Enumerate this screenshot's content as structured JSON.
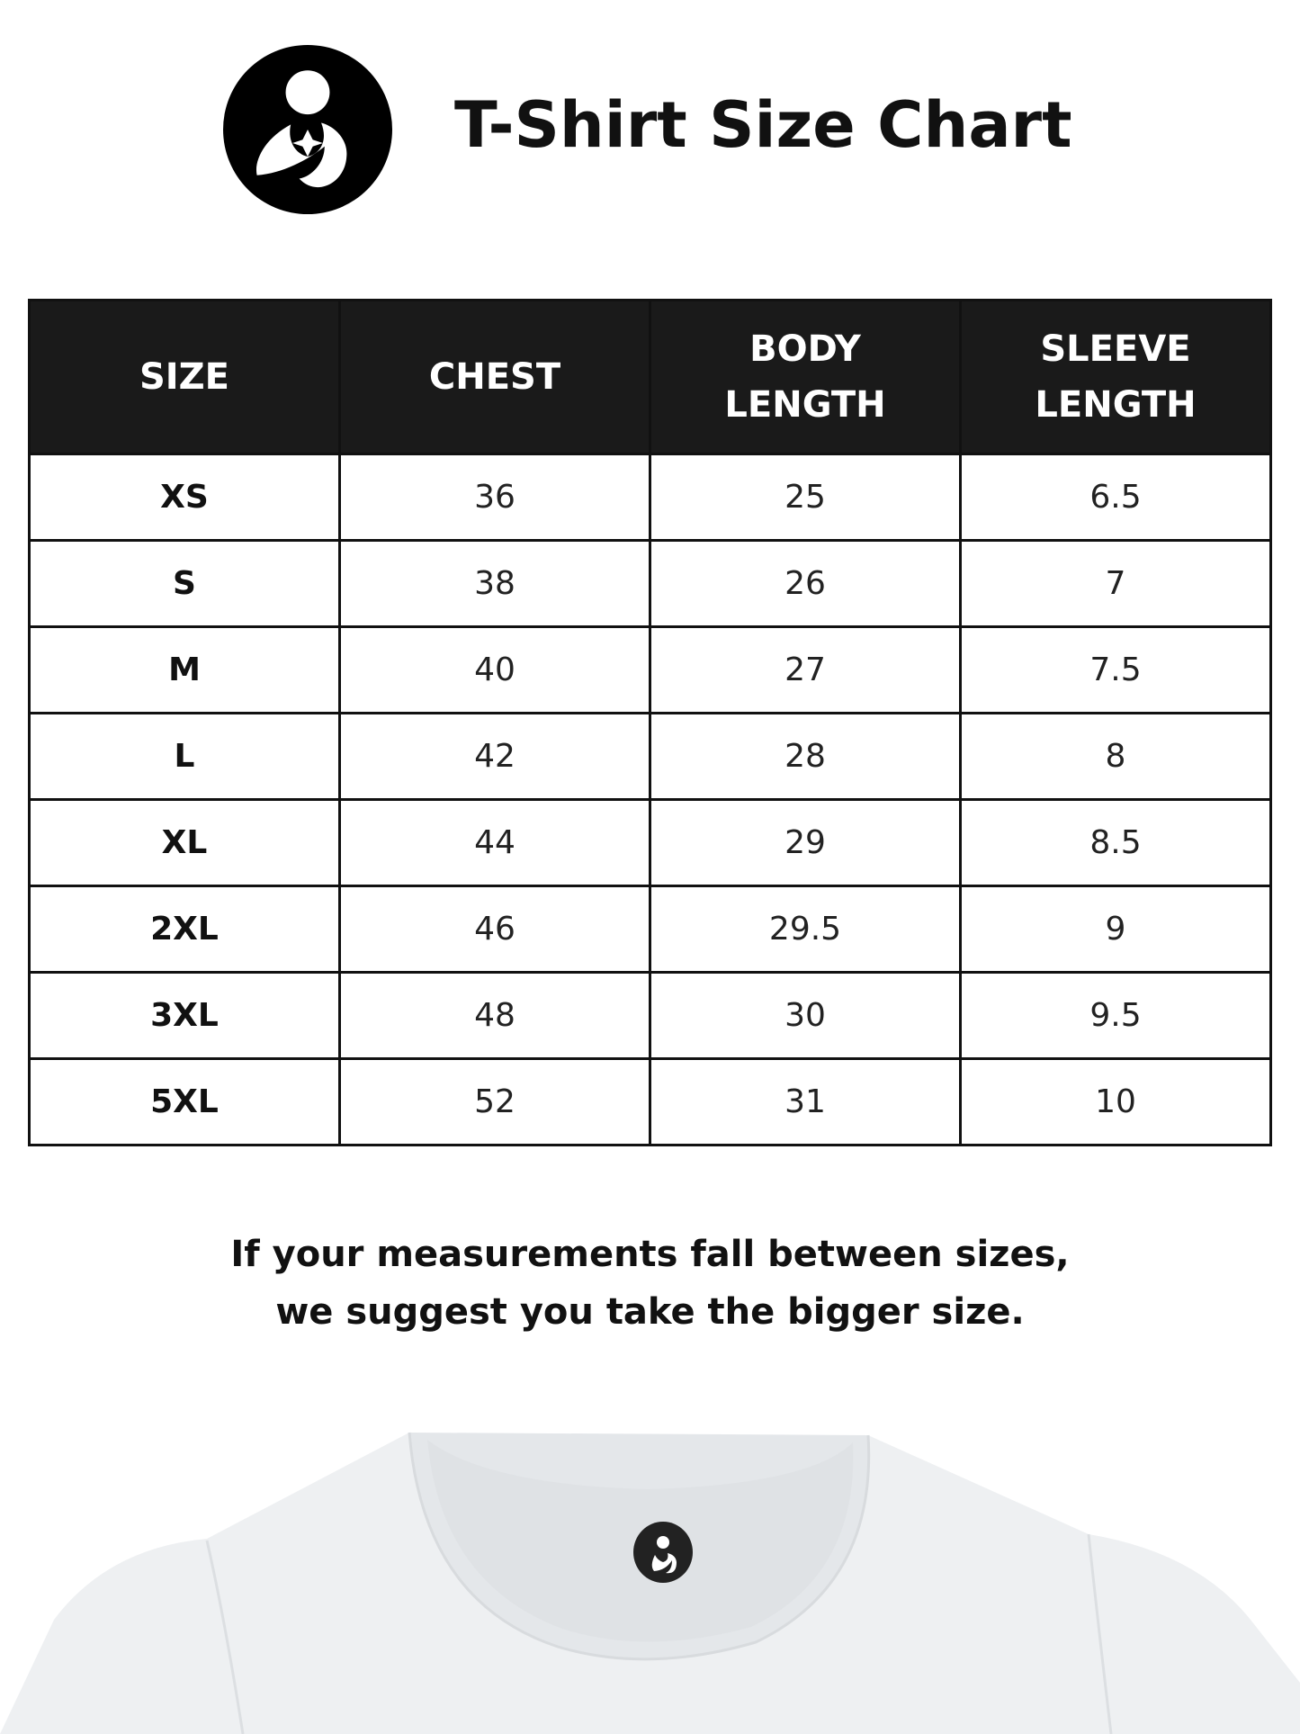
{
  "header": {
    "title": "T-Shirt Size Chart",
    "logo_icon": "mother-holding-baby-logo"
  },
  "table": {
    "columns": [
      [
        "SIZE"
      ],
      [
        "CHEST"
      ],
      [
        "BODY",
        "LENGTH"
      ],
      [
        "SLEEVE",
        "LENGTH"
      ]
    ],
    "rows": [
      [
        "XS",
        "36",
        "25",
        "6.5"
      ],
      [
        "S",
        "38",
        "26",
        "7"
      ],
      [
        "M",
        "40",
        "27",
        "7.5"
      ],
      [
        "L",
        "42",
        "28",
        "8"
      ],
      [
        "XL",
        "44",
        "29",
        "8.5"
      ],
      [
        "2XL",
        "46",
        "29.5",
        "9"
      ],
      [
        "3XL",
        "48",
        "30",
        "9.5"
      ],
      [
        "5XL",
        "52",
        "31",
        "10"
      ]
    ]
  },
  "note": {
    "line1": "If your measurements fall between sizes,",
    "line2": "we suggest you take the bigger size."
  },
  "colors": {
    "header_bg": "#1a1a1a",
    "shirt": "#eef0f2"
  }
}
